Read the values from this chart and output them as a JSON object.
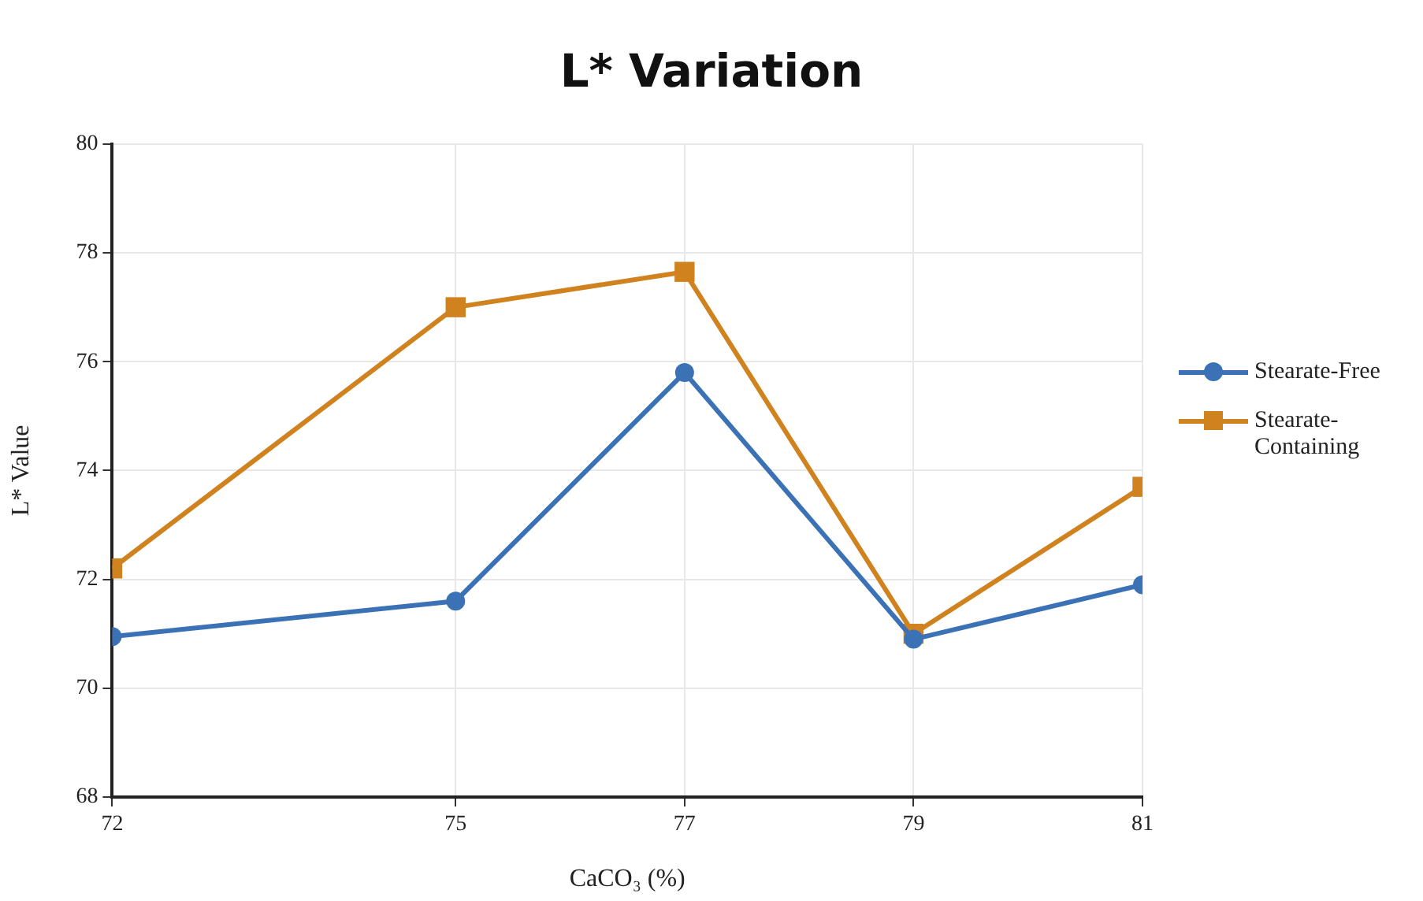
{
  "chart_data": {
    "type": "line",
    "title": "L* Variation",
    "xlabel": "CaCO₃ (%)",
    "ylabel": "L* Value",
    "x": [
      72,
      75,
      77,
      79,
      81
    ],
    "series": [
      {
        "name": "Stearate-Free",
        "color": "#3a72b5",
        "marker": "circle",
        "values": [
          70.95,
          71.6,
          75.8,
          70.9,
          71.9
        ]
      },
      {
        "name": "Stearate-Containing",
        "color": "#d0821f",
        "marker": "square",
        "values": [
          72.2,
          77.0,
          77.65,
          71.0,
          73.7
        ]
      }
    ],
    "xlim": [
      72,
      81
    ],
    "xticks": [
      72,
      75,
      77,
      79,
      81
    ],
    "ylim": [
      68,
      80
    ],
    "yticks": [
      68,
      70,
      72,
      74,
      76,
      78,
      80
    ],
    "grid": true,
    "legend": "right",
    "line_style": "solid"
  }
}
